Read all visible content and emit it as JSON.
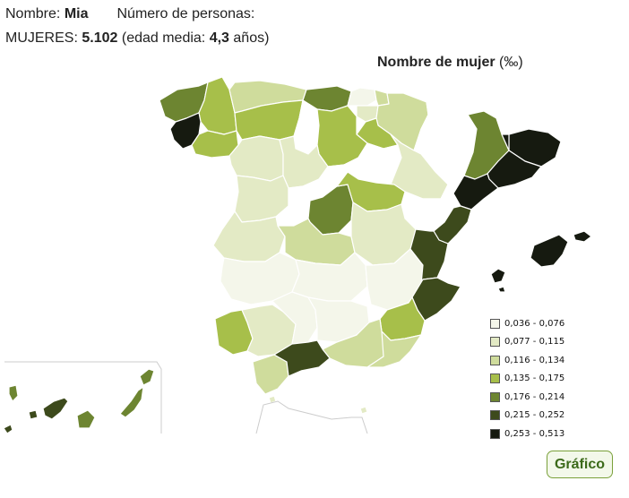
{
  "header": {
    "name_label": "Nombre:",
    "name_value": "Mia",
    "count_label": "Número de personas:",
    "women_label": "MUJERES:",
    "women_count": "5.102",
    "age_open": "(edad media:",
    "age_value": "4,3",
    "age_unit": "años)"
  },
  "map": {
    "title": "Nombre de mujer",
    "unit": "(‰)"
  },
  "legend": [
    {
      "label": "0,036 - 0,076",
      "color": "#f4f6ea"
    },
    {
      "label": "0,077 - 0,115",
      "color": "#e3eac5"
    },
    {
      "label": "0,116 - 0,134",
      "color": "#cfdc9c"
    },
    {
      "label": "0,135 - 0,175",
      "color": "#a7bf4a"
    },
    {
      "label": "0,176 - 0,214",
      "color": "#6d8531"
    },
    {
      "label": "0,215 - 0,252",
      "color": "#3d4a1c"
    },
    {
      "label": "0,253 - 0,513",
      "color": "#161a10"
    }
  ],
  "button": {
    "label": "Gráfico"
  }
}
